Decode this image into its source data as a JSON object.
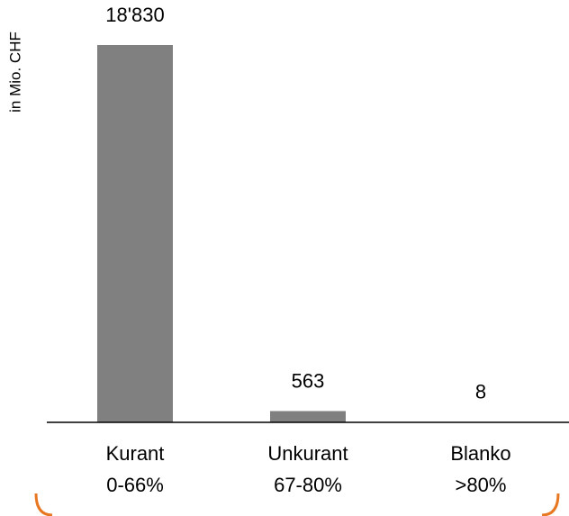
{
  "chart_data": {
    "type": "bar",
    "ylabel": "in Mio. CHF",
    "categories": [
      "Kurant\n0-66%",
      "Unkurant\n67-80%",
      "Blanko\n>80%"
    ],
    "values": [
      18830,
      563,
      8
    ],
    "value_labels": [
      "18'830",
      "563",
      "8"
    ],
    "color": "#808080"
  }
}
